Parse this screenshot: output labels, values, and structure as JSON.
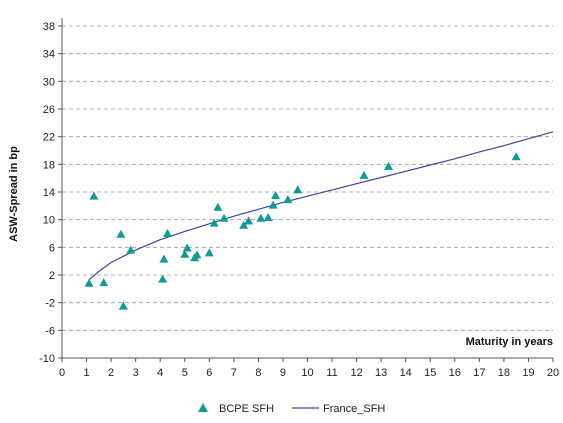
{
  "chart_data": {
    "type": "scatter",
    "xlabel": "Maturity in years",
    "ylabel": "ASW-Spread in bp",
    "xlim": [
      0,
      20
    ],
    "ylim": [
      -10,
      38
    ],
    "xticks": [
      0,
      1,
      2,
      3,
      4,
      5,
      6,
      7,
      8,
      9,
      10,
      11,
      12,
      13,
      14,
      15,
      16,
      17,
      18,
      19,
      20
    ],
    "yticks": [
      -10,
      -6,
      -2,
      2,
      6,
      10,
      14,
      18,
      22,
      26,
      30,
      34,
      38
    ],
    "grid": "horizontal-dashed",
    "legend_position": "bottom",
    "series": [
      {
        "name": "BCPE SFH",
        "kind": "scatter",
        "marker": "triangle",
        "color": "#0f9a96",
        "points": [
          [
            1.1,
            0.8
          ],
          [
            1.3,
            13.4
          ],
          [
            1.7,
            0.9
          ],
          [
            2.4,
            7.9
          ],
          [
            2.5,
            -2.5
          ],
          [
            2.8,
            5.6
          ],
          [
            4.1,
            1.4
          ],
          [
            4.15,
            4.3
          ],
          [
            4.3,
            8.0
          ],
          [
            5.0,
            5.0
          ],
          [
            5.1,
            5.9
          ],
          [
            5.4,
            4.5
          ],
          [
            5.5,
            4.9
          ],
          [
            6.0,
            5.2
          ],
          [
            6.2,
            9.5
          ],
          [
            6.35,
            11.8
          ],
          [
            6.6,
            10.2
          ],
          [
            7.4,
            9.2
          ],
          [
            7.6,
            9.8
          ],
          [
            8.1,
            10.2
          ],
          [
            8.4,
            10.3
          ],
          [
            8.6,
            12.1
          ],
          [
            8.7,
            13.5
          ],
          [
            9.2,
            12.9
          ],
          [
            9.6,
            14.3
          ],
          [
            12.3,
            16.4
          ],
          [
            13.3,
            17.7
          ],
          [
            18.5,
            19.1
          ]
        ]
      },
      {
        "name": "France_SFH",
        "kind": "line",
        "color": "#3a46a8",
        "points": [
          [
            1.1,
            1.3
          ],
          [
            1.5,
            2.5
          ],
          [
            2,
            3.8
          ],
          [
            3,
            5.6
          ],
          [
            4,
            7.1
          ],
          [
            5,
            8.3
          ],
          [
            6,
            9.4
          ],
          [
            7,
            10.5
          ],
          [
            8,
            11.5
          ],
          [
            9,
            12.5
          ],
          [
            10,
            13.4
          ],
          [
            11,
            14.3
          ],
          [
            12,
            15.2
          ],
          [
            13,
            16.1
          ],
          [
            14,
            17.0
          ],
          [
            15,
            17.9
          ],
          [
            16,
            18.8
          ],
          [
            17,
            19.8
          ],
          [
            18,
            20.7
          ],
          [
            19,
            21.7
          ],
          [
            20,
            22.7
          ]
        ]
      }
    ]
  }
}
